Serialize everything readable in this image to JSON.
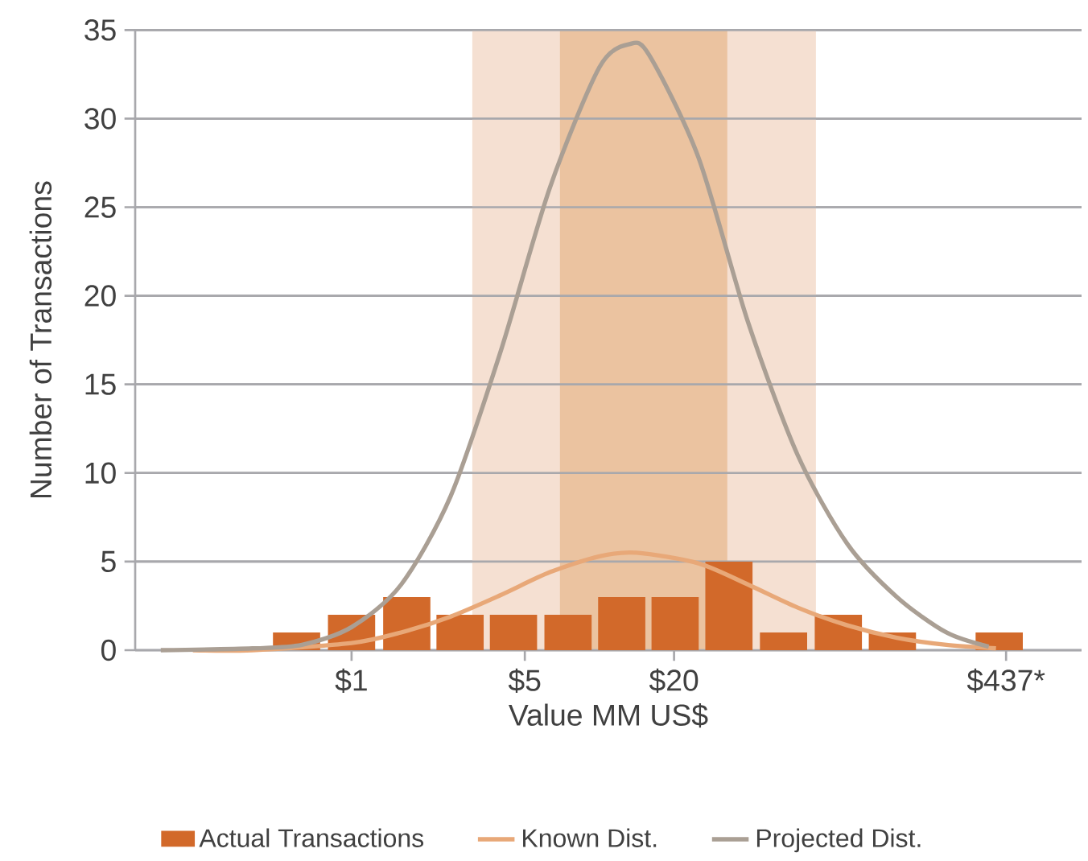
{
  "chart_data": {
    "type": "bar",
    "xlabel": "Value MM US$",
    "ylabel": "Number of Transactions",
    "log": "x",
    "grid": "y",
    "legend": "bottom",
    "marker": "none",
    "xlim": [
      0.134,
      881
    ],
    "xticks": [
      {
        "value": 1,
        "label": "$1"
      },
      {
        "value": 5,
        "label": "$5"
      },
      {
        "value": 20,
        "label": "$20"
      },
      {
        "value": 437,
        "label": "$437*"
      }
    ],
    "ylim": [
      0,
      35
    ],
    "yticks": [
      0,
      5,
      10,
      15,
      20,
      25,
      30,
      35
    ],
    "bands": [
      {
        "axis": "x",
        "from": 3.07,
        "to": 74.7,
        "color": "#f5e0d2"
      },
      {
        "axis": "x",
        "from": 6.93,
        "to": 32.8,
        "color": "#ebc3a0"
      }
    ],
    "series": [
      {
        "name": "Actual Transactions",
        "color": "#d2692a",
        "x": [
          0.6,
          1.0,
          1.67,
          2.74,
          4.5,
          7.47,
          12.3,
          20.2,
          33.3,
          55.3,
          92,
          152,
          410
        ],
        "values": [
          1,
          2,
          3,
          2,
          2,
          2,
          3,
          3,
          5,
          1,
          2,
          1,
          1
        ]
      },
      {
        "name": "Known Dist.",
        "type": "line",
        "color": "#e8a878",
        "x": [
          0.229,
          0.398,
          1,
          1.585,
          2.512,
          3.981,
          6.31,
          10,
          14.1,
          25.1,
          39.8,
          63.1,
          100,
          158.5,
          251,
          398
        ],
        "values": [
          0,
          0,
          0.4,
          1,
          1.9,
          3.1,
          4.4,
          5.3,
          5.5,
          4.9,
          3.7,
          2.4,
          1.4,
          0.7,
          0.3,
          0.1
        ]
      },
      {
        "name": "Projected Dist.",
        "type": "line",
        "color": "#aa9f94",
        "x": [
          0.17,
          0.398,
          0.631,
          1,
          1.585,
          2.512,
          3.981,
          6.31,
          10,
          13.2,
          15.85,
          25.1,
          39.8,
          63.1,
          100,
          158.5,
          251,
          372
        ],
        "values": [
          0,
          0.1,
          0.3,
          1.3,
          3.7,
          8.7,
          16.8,
          26.1,
          32.9,
          34.2,
          33.6,
          27.8,
          18.5,
          11,
          6,
          3,
          1,
          0.2
        ]
      }
    ]
  }
}
